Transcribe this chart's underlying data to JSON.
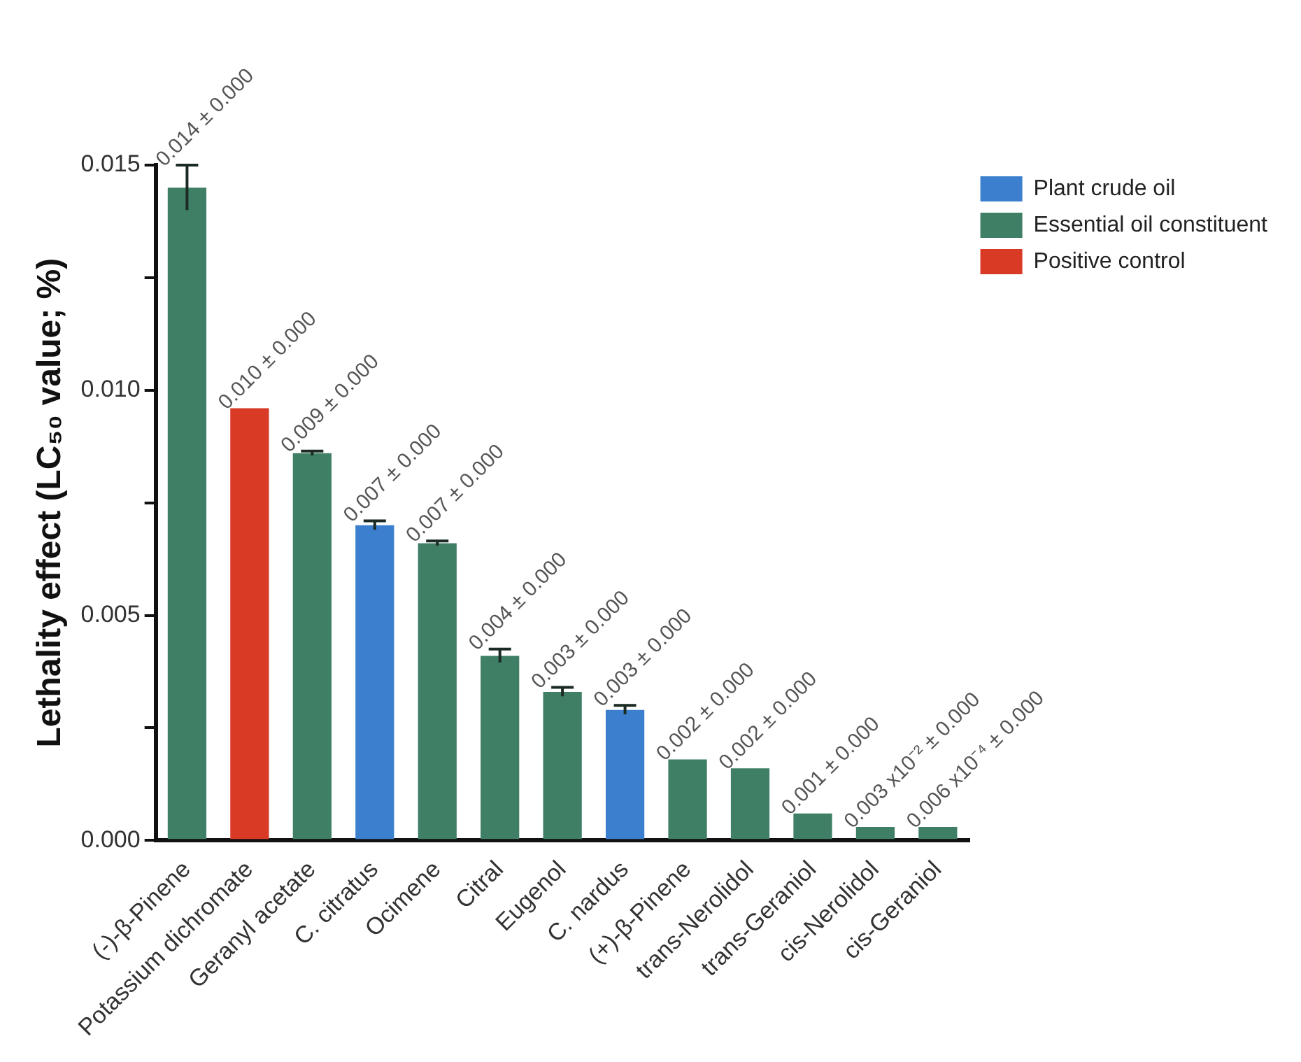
{
  "chart_data": {
    "type": "bar",
    "ylabel": "Lethality effect (LC₅₀ value; %)",
    "categories": [
      "(-)-β-Pinene",
      "Potassium dichromate",
      "Geranyl acetate",
      "C. citratus",
      "Ocimene",
      "Citral",
      "Eugenol",
      "C. nardus",
      "(+)-β-Pinene",
      "trans-Nerolidol",
      "trans-Geraniol",
      "cis-Nerolidol",
      "cis-Geraniol"
    ],
    "series": [
      {
        "name": "Plant crude oil",
        "color": "#3b7fce",
        "values": [
          null,
          null,
          null,
          0.007,
          null,
          null,
          null,
          0.0029,
          null,
          null,
          null,
          null,
          null
        ],
        "errors": [
          null,
          null,
          null,
          0.0001,
          null,
          null,
          null,
          0.0001,
          null,
          null,
          null,
          null,
          null
        ],
        "value_labels": [
          null,
          null,
          null,
          "0.007 ± 0.000",
          null,
          null,
          null,
          "0.003 ± 0.000",
          null,
          null,
          null,
          null,
          null
        ]
      },
      {
        "name": "Essential oil constituent",
        "color": "#3f7f66",
        "values": [
          0.0145,
          null,
          0.0086,
          null,
          0.0066,
          0.0041,
          0.0033,
          null,
          0.0018,
          0.0016,
          0.0006,
          0.0003,
          0.0003
        ],
        "errors": [
          0.0005,
          null,
          5e-05,
          null,
          5e-05,
          0.00015,
          0.0001,
          null,
          null,
          null,
          null,
          null,
          null
        ],
        "value_labels": [
          "0.014 ± 0.000",
          null,
          "0.009 ± 0.000",
          null,
          "0.007 ± 0.000",
          "0.004 ± 0.000",
          "0.003 ± 0.000",
          null,
          "0.002 ± 0.000",
          "0.002 ± 0.000",
          "0.001 ± 0.000",
          "0.003 x10⁻² ± 0.000",
          "0.006 x10⁻⁴ ± 0.000"
        ]
      },
      {
        "name": "Positive control",
        "color": "#d83a25",
        "values": [
          null,
          0.0096,
          null,
          null,
          null,
          null,
          null,
          null,
          null,
          null,
          null,
          null,
          null
        ],
        "value_labels": [
          null,
          "0.010 ± 0.000",
          null,
          null,
          null,
          null,
          null,
          null,
          null,
          null,
          null,
          null,
          null
        ]
      }
    ],
    "ylim": [
      0,
      0.015
    ],
    "yticks": [
      {
        "value": 0,
        "label": "0.000"
      },
      {
        "value": 0.0025,
        "label": null
      },
      {
        "value": 0.005,
        "label": "0.005"
      },
      {
        "value": 0.0075,
        "label": null
      },
      {
        "value": 0.01,
        "label": "0.010"
      },
      {
        "value": 0.0125,
        "label": null
      },
      {
        "value": 0.015,
        "label": "0.015"
      }
    ],
    "grid": false,
    "legend": "top right"
  }
}
